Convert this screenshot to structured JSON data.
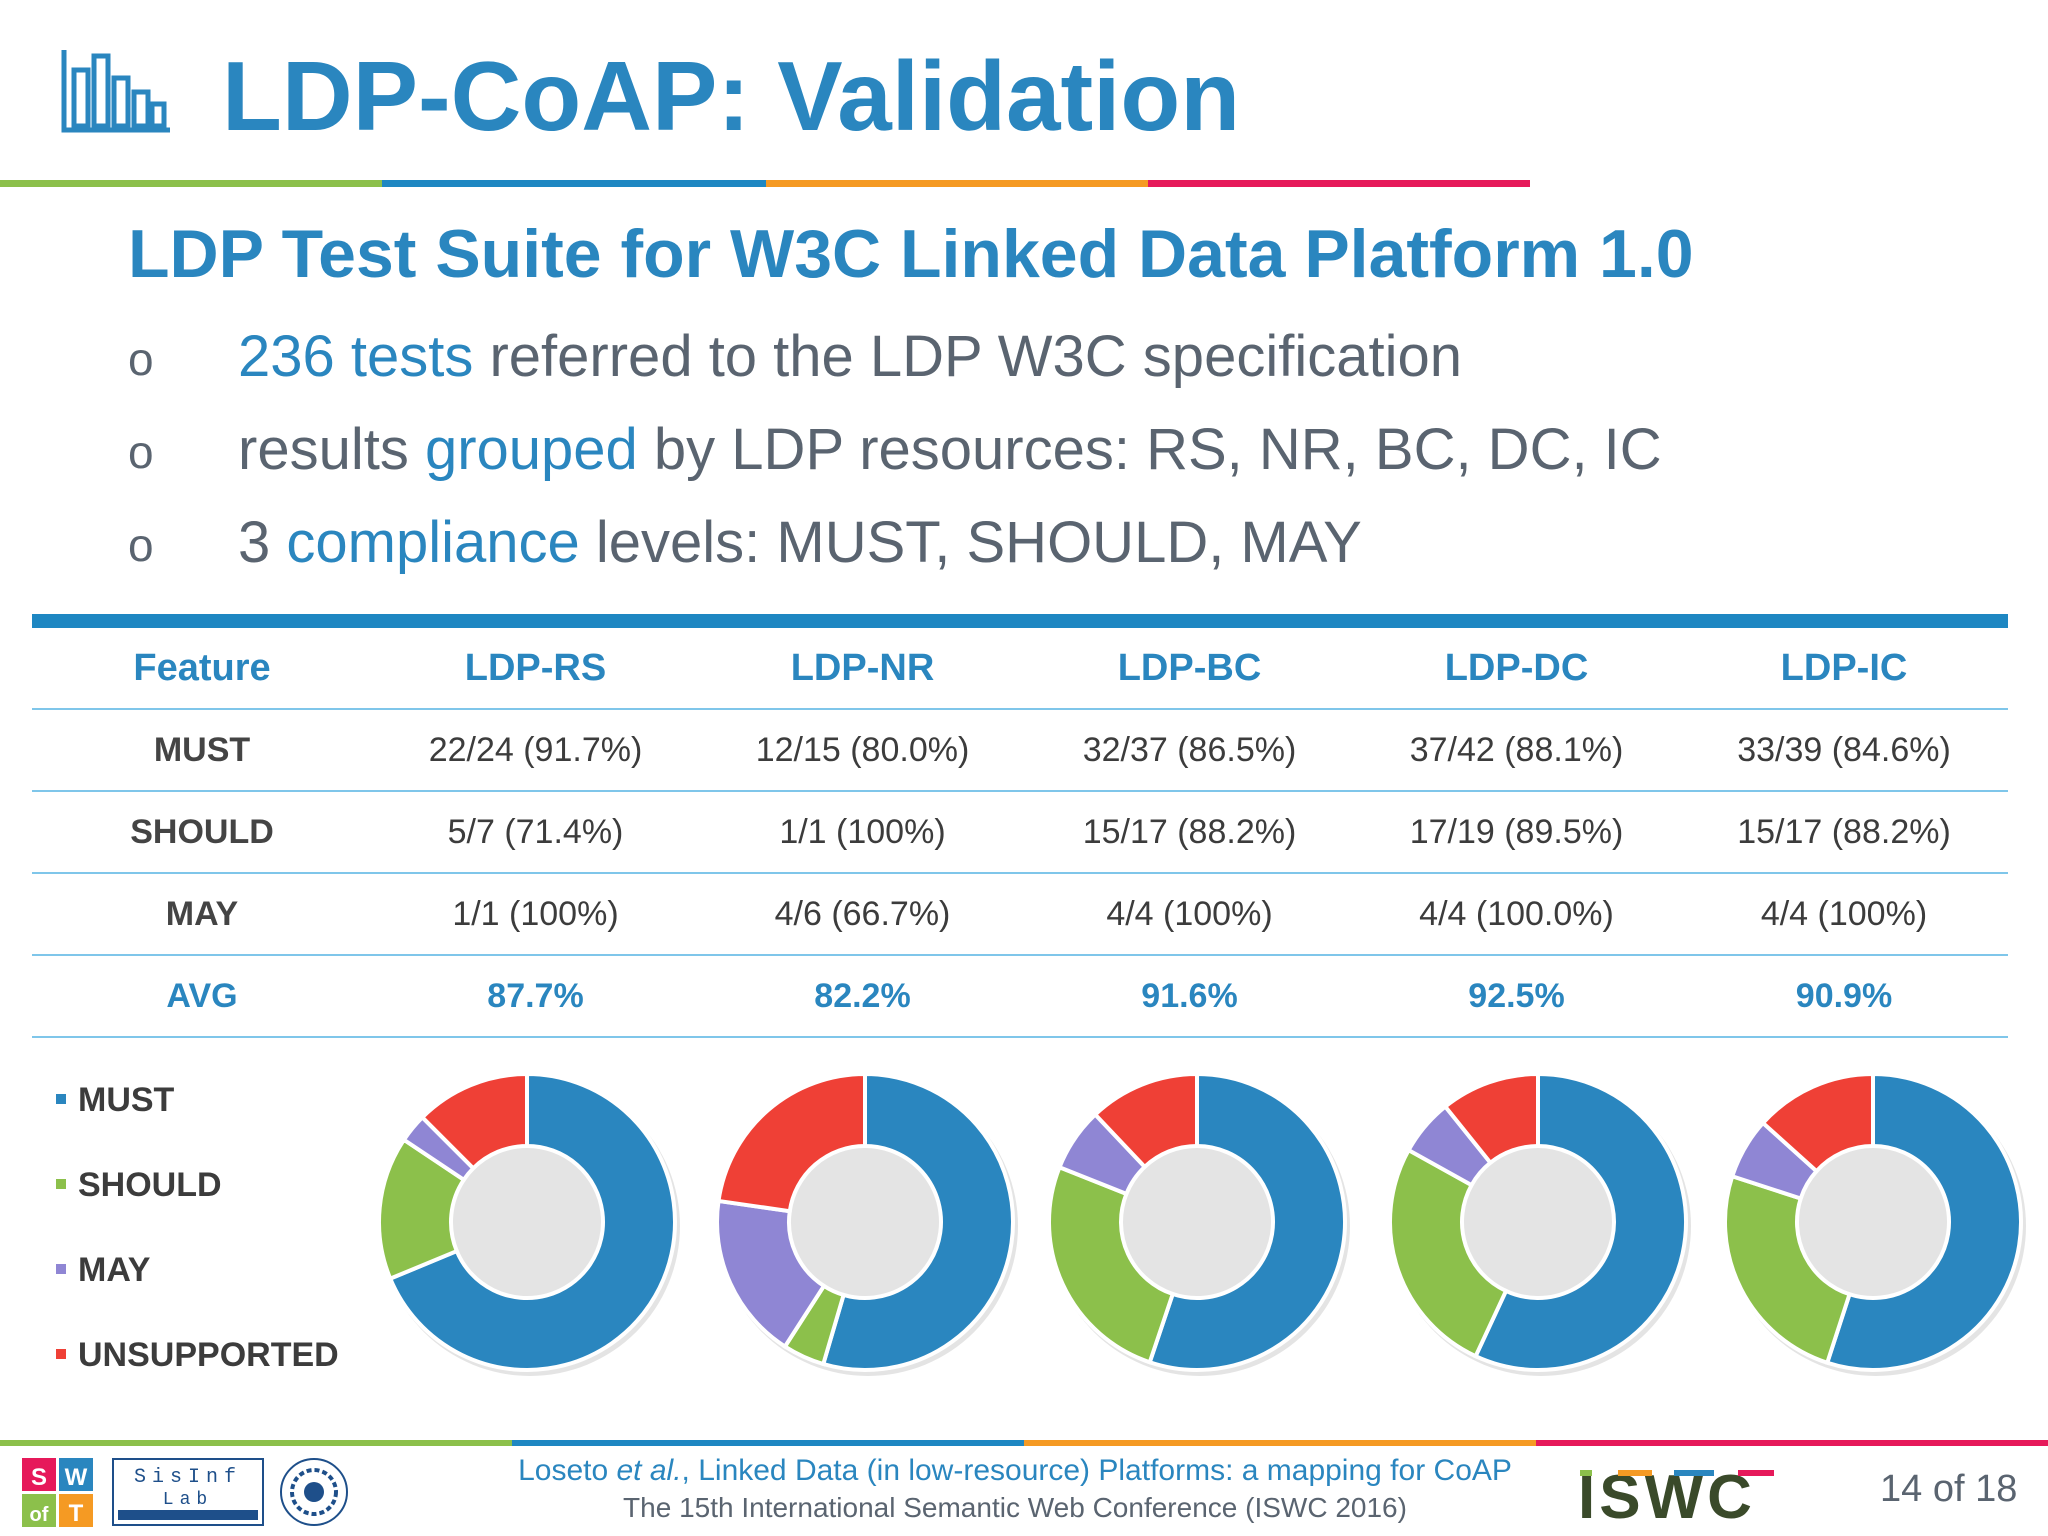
{
  "slide": {
    "title": "LDP-CoAP: Validation",
    "subtitle": "LDP Test Suite for W3C Linked Data Platform 1.0",
    "bullets": [
      {
        "mark": "o",
        "highlight": "236 tests",
        "rest": " referred to the LDP W3C specification"
      },
      {
        "mark": "o",
        "pre": "results ",
        "highlight": "grouped",
        "rest": " by LDP resources: RS, NR, BC, DC, IC"
      },
      {
        "mark": "o",
        "pre": "3 ",
        "highlight": "compliance",
        "rest": " levels: MUST, SHOULD, MAY"
      }
    ]
  },
  "table": {
    "headers": [
      "Feature",
      "LDP-RS",
      "LDP-NR",
      "LDP-BC",
      "LDP-DC",
      "LDP-IC"
    ],
    "rows": [
      [
        "MUST",
        "22/24 (91.7%)",
        "12/15 (80.0%)",
        "32/37 (86.5%)",
        "37/42 (88.1%)",
        "33/39 (84.6%)"
      ],
      [
        "SHOULD",
        "5/7 (71.4%)",
        "1/1 (100%)",
        "15/17 (88.2%)",
        "17/19 (89.5%)",
        "15/17 (88.2%)"
      ],
      [
        "MAY",
        "1/1 (100%)",
        "4/6 (66.7%)",
        "4/4 (100%)",
        "4/4 (100.0%)",
        "4/4 (100%)"
      ]
    ],
    "avg": [
      "AVG",
      "87.7%",
      "82.2%",
      "91.6%",
      "92.5%",
      "90.9%"
    ]
  },
  "legend": [
    {
      "label": "MUST",
      "color": "#2a86bf"
    },
    {
      "label": "SHOULD",
      "color": "#8cc04b"
    },
    {
      "label": "MAY",
      "color": "#8f86d4"
    },
    {
      "label": "UNSUPPORTED",
      "color": "#ef4036"
    }
  ],
  "chart_data": {
    "type": "pie",
    "variant": "donut",
    "series_names": [
      "MUST",
      "SHOULD",
      "MAY",
      "UNSUPPORTED"
    ],
    "charts": [
      {
        "category": "LDP-RS",
        "values": [
          22,
          5,
          1,
          4
        ]
      },
      {
        "category": "LDP-NR",
        "values": [
          12,
          1,
          4,
          5
        ]
      },
      {
        "category": "LDP-BC",
        "values": [
          32,
          15,
          4,
          7
        ]
      },
      {
        "category": "LDP-DC",
        "values": [
          37,
          17,
          4,
          7
        ]
      },
      {
        "category": "LDP-IC",
        "values": [
          33,
          15,
          4,
          8
        ]
      }
    ],
    "legend_position": "left"
  },
  "footer": {
    "authors": "Loseto",
    "etal": "et al.",
    "paper": ", Linked Data (in low-resource) Platforms: a mapping for CoAP",
    "conference": "The 15th International Semantic Web Conference (ISWC 2016)",
    "page": "14 of 18",
    "logos": [
      "SWoT",
      "SisInf Lab",
      "Politecnico di Bari seal",
      "ISWC"
    ]
  },
  "colors": {
    "accent": "#2a86bf",
    "rule": [
      "#8cc04b",
      "#1e87c2",
      "#f59a23",
      "#e6195a"
    ]
  }
}
